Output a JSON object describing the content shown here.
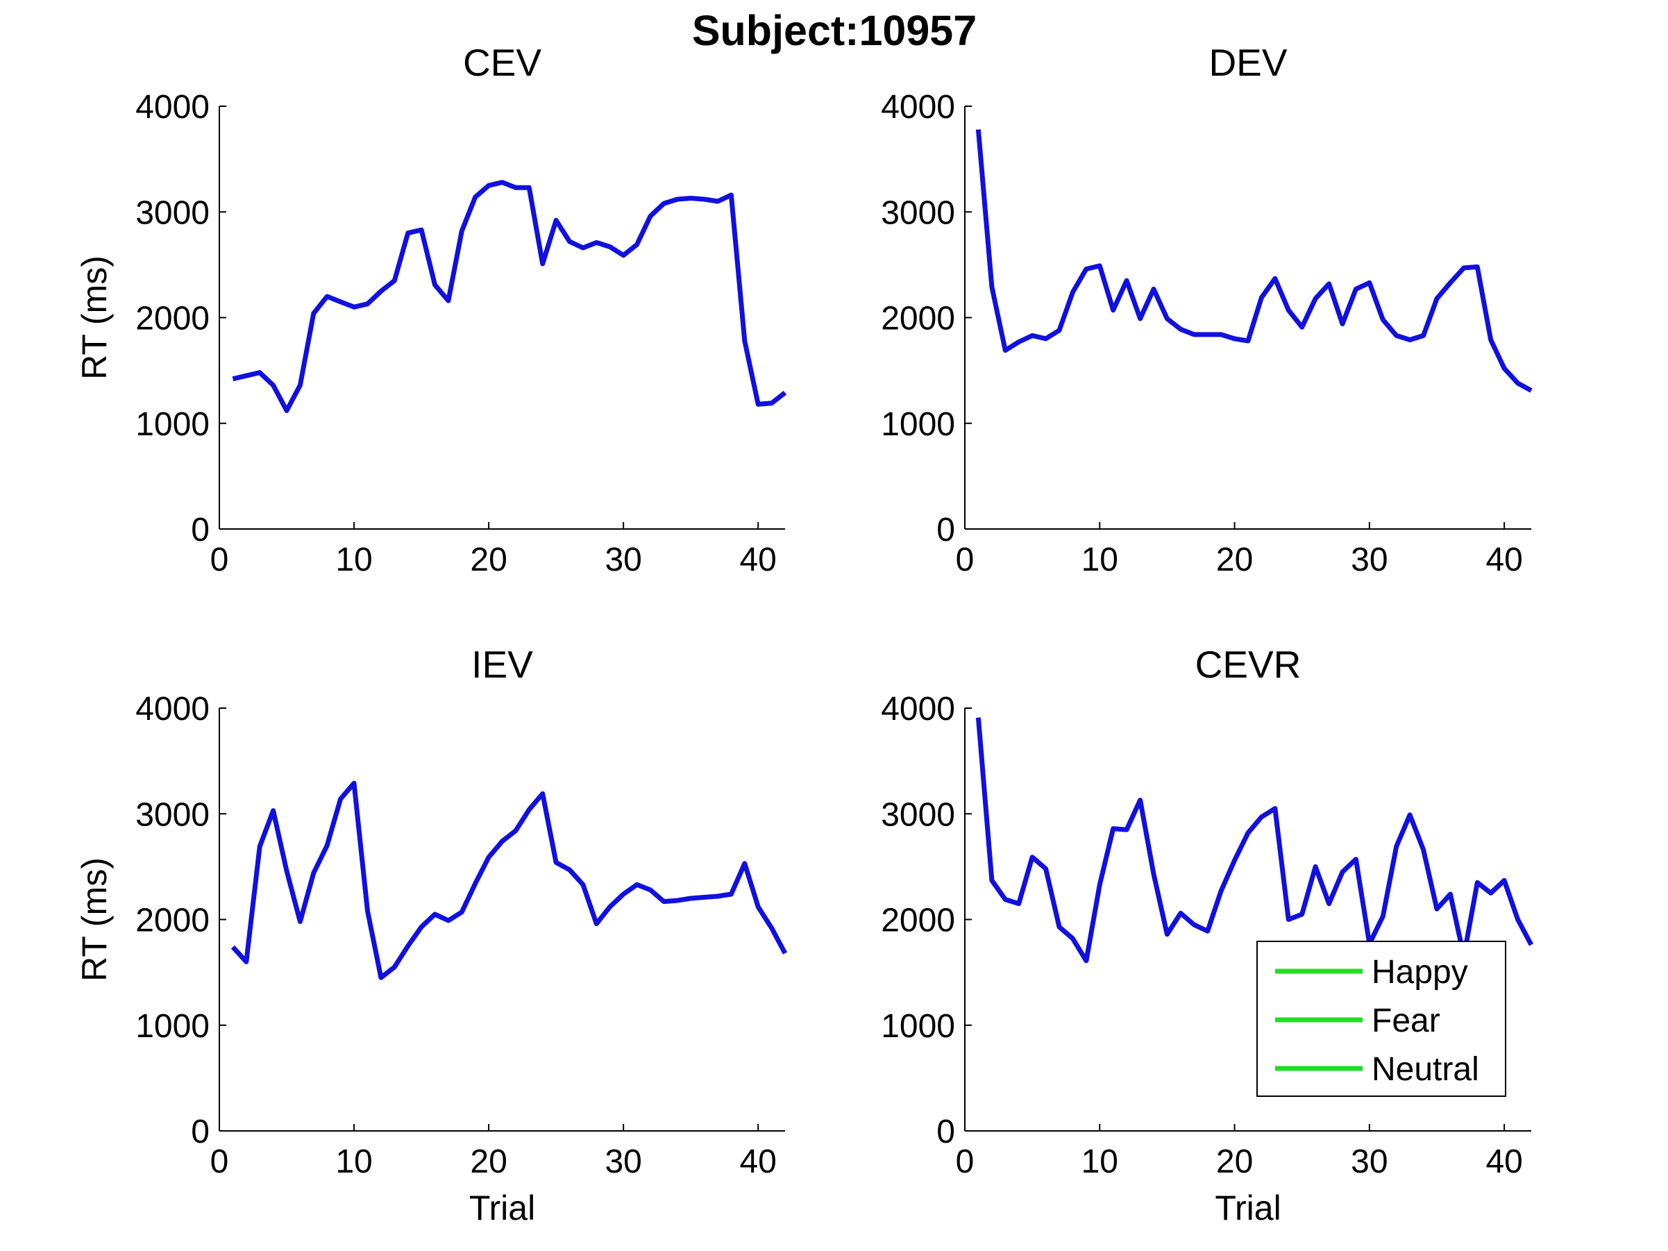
{
  "figure": {
    "suptitle": "Subject:10957"
  },
  "chart_data": [
    {
      "type": "line",
      "title": "CEV",
      "xlabel": "",
      "ylabel": "RT (ms)",
      "xlim": [
        0,
        42
      ],
      "ylim": [
        0,
        4000
      ],
      "xticks": [
        0,
        10,
        20,
        30,
        40
      ],
      "yticks": [
        0,
        1000,
        2000,
        3000,
        4000
      ],
      "series": [
        {
          "color": "#1010e0",
          "x": [
            1,
            2,
            3,
            4,
            5,
            6,
            7,
            8,
            9,
            10,
            11,
            12,
            13,
            14,
            15,
            16,
            17,
            18,
            19,
            20,
            21,
            22,
            23,
            24,
            25,
            26,
            27,
            28,
            29,
            30,
            31,
            32,
            33,
            34,
            35,
            36,
            37,
            38,
            39,
            40,
            41,
            42
          ],
          "values": [
            1420,
            1450,
            1480,
            1360,
            1120,
            1360,
            2040,
            2200,
            2150,
            2100,
            2130,
            2250,
            2350,
            2800,
            2830,
            2310,
            2160,
            2820,
            3140,
            3250,
            3280,
            3230,
            3230,
            2510,
            2920,
            2720,
            2660,
            2710,
            2670,
            2590,
            2690,
            2960,
            3080,
            3120,
            3130,
            3120,
            3100,
            3160,
            1780,
            1180,
            1190,
            1290
          ]
        }
      ]
    },
    {
      "type": "line",
      "title": "DEV",
      "xlabel": "",
      "ylabel": "",
      "xlim": [
        0,
        42
      ],
      "ylim": [
        0,
        4000
      ],
      "xticks": [
        0,
        10,
        20,
        30,
        40
      ],
      "yticks": [
        0,
        1000,
        2000,
        3000,
        4000
      ],
      "series": [
        {
          "color": "#1010e0",
          "x": [
            1,
            2,
            3,
            4,
            5,
            6,
            7,
            8,
            9,
            10,
            11,
            12,
            13,
            14,
            15,
            16,
            17,
            18,
            19,
            20,
            21,
            22,
            23,
            24,
            25,
            26,
            27,
            28,
            29,
            30,
            31,
            32,
            33,
            34,
            35,
            36,
            37,
            38,
            39,
            40,
            41,
            42
          ],
          "values": [
            3780,
            2290,
            1690,
            1770,
            1830,
            1800,
            1880,
            2240,
            2460,
            2490,
            2070,
            2350,
            1990,
            2270,
            1990,
            1890,
            1840,
            1840,
            1840,
            1800,
            1780,
            2190,
            2370,
            2070,
            1910,
            2180,
            2320,
            1940,
            2270,
            2330,
            1980,
            1830,
            1790,
            1830,
            2180,
            2330,
            2470,
            2480,
            1790,
            1520,
            1380,
            1310
          ]
        }
      ]
    },
    {
      "type": "line",
      "title": "IEV",
      "xlabel": "Trial",
      "ylabel": "RT (ms)",
      "xlim": [
        0,
        42
      ],
      "ylim": [
        0,
        4000
      ],
      "xticks": [
        0,
        10,
        20,
        30,
        40
      ],
      "yticks": [
        0,
        1000,
        2000,
        3000,
        4000
      ],
      "series": [
        {
          "color": "#1010e0",
          "x": [
            1,
            2,
            3,
            4,
            5,
            6,
            7,
            8,
            9,
            10,
            11,
            12,
            13,
            14,
            15,
            16,
            17,
            18,
            19,
            20,
            21,
            22,
            23,
            24,
            25,
            26,
            27,
            28,
            29,
            30,
            31,
            32,
            33,
            34,
            35,
            36,
            37,
            38,
            39,
            40,
            41,
            42
          ],
          "values": [
            1740,
            1600,
            2690,
            3030,
            2460,
            1980,
            2440,
            2700,
            3140,
            3290,
            2080,
            1450,
            1550,
            1750,
            1930,
            2050,
            1990,
            2070,
            2340,
            2590,
            2740,
            2840,
            3040,
            3190,
            2540,
            2470,
            2330,
            1960,
            2120,
            2240,
            2330,
            2280,
            2170,
            2180,
            2200,
            2210,
            2220,
            2240,
            2530,
            2120,
            1920,
            1680
          ]
        }
      ]
    },
    {
      "type": "line",
      "title": "CEVR",
      "xlabel": "Trial",
      "ylabel": "",
      "xlim": [
        0,
        42
      ],
      "ylim": [
        0,
        4000
      ],
      "xticks": [
        0,
        10,
        20,
        30,
        40
      ],
      "yticks": [
        0,
        1000,
        2000,
        3000,
        4000
      ],
      "legend": {
        "placement": "bottom-right",
        "entries": [
          "Happy",
          "Fear",
          "Neutral"
        ],
        "color": "#22dd22"
      },
      "series": [
        {
          "color": "#1010e0",
          "x": [
            1,
            2,
            3,
            4,
            5,
            6,
            7,
            8,
            9,
            10,
            11,
            12,
            13,
            14,
            15,
            16,
            17,
            18,
            19,
            20,
            21,
            22,
            23,
            24,
            25,
            26,
            27,
            28,
            29,
            30,
            31,
            32,
            33,
            34,
            35,
            36,
            37,
            38,
            39,
            40,
            41,
            42
          ],
          "values": [
            3910,
            2370,
            2190,
            2150,
            2590,
            2480,
            1930,
            1820,
            1610,
            2330,
            2860,
            2850,
            3130,
            2430,
            1860,
            2060,
            1950,
            1890,
            2270,
            2560,
            2820,
            2970,
            3050,
            2000,
            2050,
            2500,
            2150,
            2450,
            2570,
            1770,
            2030,
            2690,
            2990,
            2660,
            2100,
            2240,
            1650,
            2350,
            2250,
            2370,
            2000,
            1760
          ]
        }
      ]
    }
  ]
}
